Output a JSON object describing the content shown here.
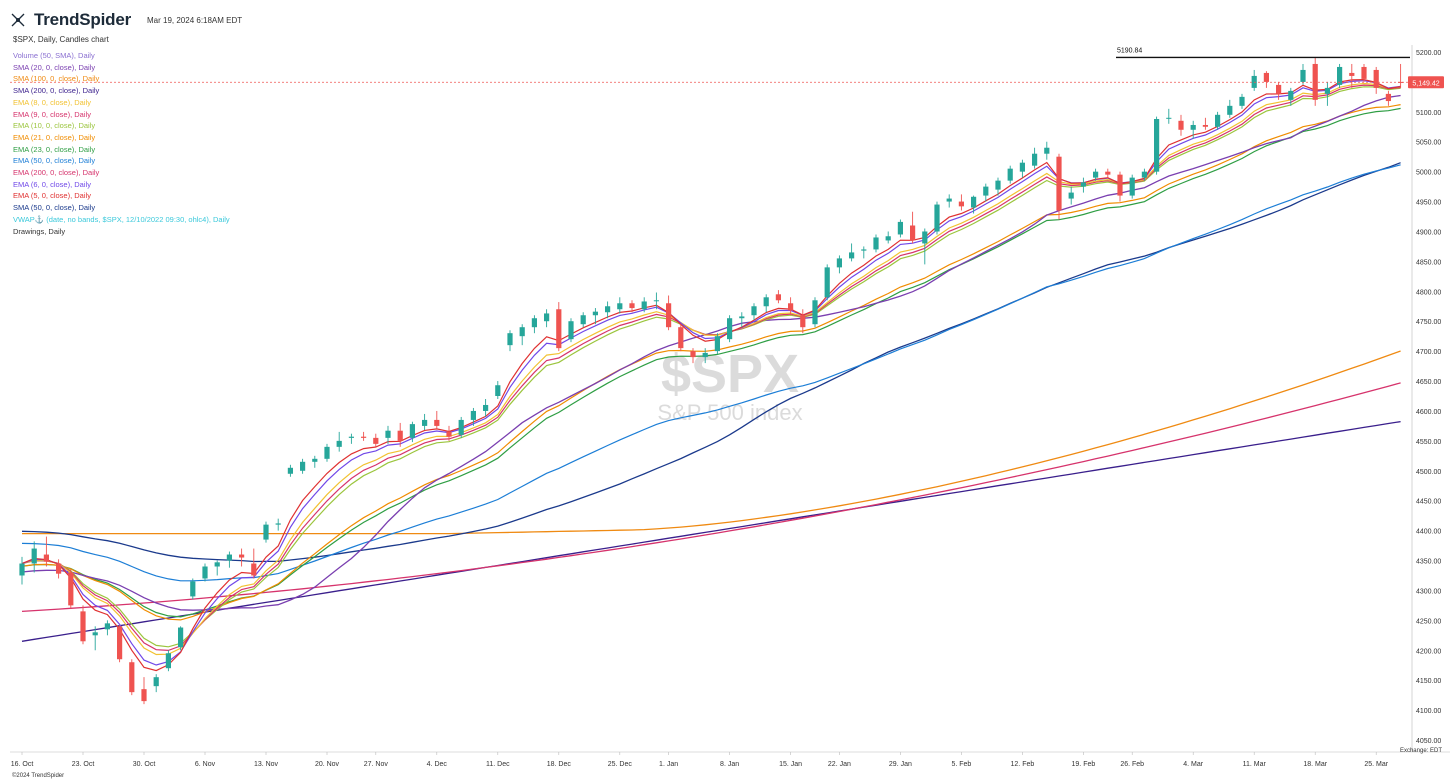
{
  "header": {
    "brand": "TrendSpider",
    "timestamp": "Mar 19, 2024 6:18AM EDT",
    "subtitle": "$SPX, Daily, Candles chart"
  },
  "legend": [
    {
      "label": "Volume (50, SMA), Daily",
      "color": "#8a6fd1"
    },
    {
      "label": "SMA (20, 0, close), Daily",
      "color": "#7a3fb0"
    },
    {
      "label": "SMA (100, 0, close), Daily",
      "color": "#ef8a12"
    },
    {
      "label": "SMA (200, 0, close), Daily",
      "color": "#3a1f8c"
    },
    {
      "label": "EMA (8, 0, close), Daily",
      "color": "#f2c232"
    },
    {
      "label": "EMA (9, 0, close), Daily",
      "color": "#d6336c"
    },
    {
      "label": "EMA (10, 0, close), Daily",
      "color": "#9bc53d"
    },
    {
      "label": "EMA (21, 0, close), Daily",
      "color": "#f08c00"
    },
    {
      "label": "EMA (23, 0, close), Daily",
      "color": "#2f9e44"
    },
    {
      "label": "EMA (50, 0, close), Daily",
      "color": "#1c7ed6"
    },
    {
      "label": "EMA (200, 0, close), Daily",
      "color": "#d6336c"
    },
    {
      "label": "EMA (6, 0, close), Daily",
      "color": "#7048e8"
    },
    {
      "label": "EMA (5, 0, close), Daily",
      "color": "#e03131"
    },
    {
      "label": "SMA (50, 0, close), Daily",
      "color": "#1b3a8c"
    },
    {
      "label": "VWAP⚓ (date, no bands, $SPX, 12/10/2022 09:30, ohlc4), Daily",
      "color": "#3bc9db"
    },
    {
      "label": "Drawings, Daily",
      "color": "#333333"
    }
  ],
  "footer": {
    "copyright": "©2024 TrendSpider",
    "exchange": "Exchange: EDT"
  },
  "watermark": {
    "symbol": "$SPX",
    "name": "S&P 500 index"
  },
  "colors": {
    "up": "#26a69a",
    "down": "#ef5350",
    "grid": "#ffffff"
  },
  "chart_data": {
    "type": "candlestick",
    "title": "$SPX",
    "ylim": [
      4050,
      5200
    ],
    "yticks": [
      4050,
      4100,
      4150,
      4200,
      4250,
      4300,
      4350,
      4400,
      4450,
      4500,
      4550,
      4600,
      4650,
      4700,
      4750,
      4800,
      4850,
      4900,
      4950,
      5000,
      5050,
      5100,
      5150,
      5200
    ],
    "xticks": [
      {
        "i": 0,
        "label": "16. Oct"
      },
      {
        "i": 5,
        "label": "23. Oct"
      },
      {
        "i": 10,
        "label": "30. Oct"
      },
      {
        "i": 15,
        "label": "6. Nov"
      },
      {
        "i": 20,
        "label": "13. Nov"
      },
      {
        "i": 25,
        "label": "20. Nov"
      },
      {
        "i": 29,
        "label": "27. Nov"
      },
      {
        "i": 34,
        "label": "4. Dec"
      },
      {
        "i": 39,
        "label": "11. Dec"
      },
      {
        "i": 44,
        "label": "18. Dec"
      },
      {
        "i": 49,
        "label": "25. Dec"
      },
      {
        "i": 53,
        "label": "1. Jan"
      },
      {
        "i": 58,
        "label": "8. Jan"
      },
      {
        "i": 63,
        "label": "15. Jan"
      },
      {
        "i": 67,
        "label": "22. Jan"
      },
      {
        "i": 72,
        "label": "29. Jan"
      },
      {
        "i": 77,
        "label": "5. Feb"
      },
      {
        "i": 82,
        "label": "12. Feb"
      },
      {
        "i": 87,
        "label": "19. Feb"
      },
      {
        "i": 91,
        "label": "26. Feb"
      },
      {
        "i": 96,
        "label": "4. Mar"
      },
      {
        "i": 101,
        "label": "11. Mar"
      },
      {
        "i": 106,
        "label": "18. Mar"
      },
      {
        "i": 111,
        "label": "25. Mar"
      }
    ],
    "candles": [
      [
        4325,
        4356,
        4310,
        4345
      ],
      [
        4345,
        4382,
        4330,
        4370
      ],
      [
        4360,
        4390,
        4340,
        4348
      ],
      [
        4345,
        4352,
        4320,
        4328
      ],
      [
        4330,
        4335,
        4270,
        4275
      ],
      [
        4265,
        4275,
        4210,
        4215
      ],
      [
        4225,
        4240,
        4200,
        4230
      ],
      [
        4235,
        4250,
        4225,
        4245
      ],
      [
        4240,
        4242,
        4180,
        4185
      ],
      [
        4180,
        4185,
        4125,
        4130
      ],
      [
        4135,
        4155,
        4110,
        4115
      ],
      [
        4140,
        4160,
        4130,
        4155
      ],
      [
        4170,
        4200,
        4165,
        4195
      ],
      [
        4205,
        4240,
        4200,
        4238
      ],
      [
        4290,
        4320,
        4285,
        4315
      ],
      [
        4320,
        4345,
        4315,
        4340
      ],
      [
        4340,
        4350,
        4325,
        4347
      ],
      [
        4350,
        4365,
        4338,
        4360
      ],
      [
        4360,
        4370,
        4340,
        4355
      ],
      [
        4345,
        4370,
        4320,
        4325
      ],
      [
        4385,
        4415,
        4380,
        4410
      ],
      [
        4410,
        4420,
        4400,
        4412
      ],
      [
        4495,
        4510,
        4490,
        4505
      ],
      [
        4500,
        4520,
        4495,
        4515
      ],
      [
        4515,
        4525,
        4505,
        4520
      ],
      [
        4520,
        4545,
        4515,
        4540
      ],
      [
        4540,
        4565,
        4532,
        4550
      ],
      [
        4555,
        4562,
        4545,
        4557
      ],
      [
        4557,
        4565,
        4550,
        4555
      ],
      [
        4555,
        4562,
        4540,
        4545
      ],
      [
        4555,
        4575,
        4545,
        4567
      ],
      [
        4567,
        4580,
        4540,
        4550
      ],
      [
        4555,
        4582,
        4548,
        4578
      ],
      [
        4575,
        4595,
        4568,
        4585
      ],
      [
        4585,
        4600,
        4570,
        4575
      ],
      [
        4565,
        4575,
        4550,
        4557
      ],
      [
        4560,
        4590,
        4555,
        4585
      ],
      [
        4585,
        4605,
        4575,
        4600
      ],
      [
        4600,
        4620,
        4590,
        4610
      ],
      [
        4625,
        4650,
        4620,
        4643
      ],
      [
        4710,
        4735,
        4700,
        4730
      ],
      [
        4725,
        4745,
        4710,
        4740
      ],
      [
        4740,
        4760,
        4730,
        4755
      ],
      [
        4750,
        4770,
        4740,
        4763
      ],
      [
        4770,
        4782,
        4700,
        4705
      ],
      [
        4720,
        4755,
        4715,
        4750
      ],
      [
        4745,
        4765,
        4740,
        4760
      ],
      [
        4760,
        4772,
        4745,
        4766
      ],
      [
        4765,
        4783,
        4755,
        4775
      ],
      [
        4770,
        4790,
        4763,
        4780
      ],
      [
        4780,
        4785,
        4765,
        4772
      ],
      [
        4770,
        4790,
        4765,
        4783
      ],
      [
        4785,
        4798,
        4770,
        4785
      ],
      [
        4780,
        4793,
        4735,
        4740
      ],
      [
        4740,
        4745,
        4700,
        4705
      ],
      [
        4700,
        4705,
        4680,
        4690
      ],
      [
        4690,
        4705,
        4680,
        4697
      ],
      [
        4700,
        4730,
        4695,
        4725
      ],
      [
        4720,
        4760,
        4715,
        4755
      ],
      [
        4755,
        4765,
        4740,
        4758
      ],
      [
        4760,
        4780,
        4752,
        4775
      ],
      [
        4775,
        4795,
        4765,
        4790
      ],
      [
        4795,
        4802,
        4780,
        4785
      ],
      [
        4780,
        4790,
        4760,
        4768
      ],
      [
        4760,
        4770,
        4730,
        4740
      ],
      [
        4745,
        4790,
        4740,
        4785
      ],
      [
        4790,
        4845,
        4785,
        4840
      ],
      [
        4840,
        4860,
        4830,
        4855
      ],
      [
        4855,
        4880,
        4850,
        4865
      ],
      [
        4868,
        4875,
        4855,
        4870
      ],
      [
        4870,
        4895,
        4865,
        4890
      ],
      [
        4885,
        4900,
        4880,
        4892
      ],
      [
        4895,
        4920,
        4890,
        4916
      ],
      [
        4910,
        4933,
        4880,
        4885
      ],
      [
        4880,
        4905,
        4845,
        4900
      ],
      [
        4900,
        4950,
        4895,
        4945
      ],
      [
        4950,
        4962,
        4940,
        4955
      ],
      [
        4950,
        4962,
        4935,
        4942
      ],
      [
        4940,
        4960,
        4930,
        4958
      ],
      [
        4960,
        4980,
        4950,
        4975
      ],
      [
        4970,
        4990,
        4960,
        4985
      ],
      [
        4985,
        5010,
        4980,
        5005
      ],
      [
        5000,
        5020,
        4990,
        5015
      ],
      [
        5010,
        5040,
        5005,
        5030
      ],
      [
        5030,
        5050,
        5020,
        5040
      ],
      [
        5025,
        5030,
        4920,
        4935
      ],
      [
        4955,
        4975,
        4945,
        4965
      ],
      [
        4975,
        4990,
        4965,
        4982
      ],
      [
        4990,
        5005,
        4985,
        5000
      ],
      [
        5000,
        5005,
        4990,
        4995
      ],
      [
        4995,
        5000,
        4950,
        4960
      ],
      [
        4960,
        4995,
        4955,
        4990
      ],
      [
        4990,
        5005,
        4985,
        5000
      ],
      [
        5000,
        5092,
        4995,
        5088
      ],
      [
        5090,
        5105,
        5080,
        5090
      ],
      [
        5085,
        5095,
        5060,
        5070
      ],
      [
        5070,
        5085,
        5055,
        5078
      ],
      [
        5078,
        5090,
        5070,
        5075
      ],
      [
        5075,
        5100,
        5070,
        5095
      ],
      [
        5095,
        5120,
        5090,
        5110
      ],
      [
        5110,
        5130,
        5105,
        5125
      ],
      [
        5140,
        5170,
        5135,
        5160
      ],
      [
        5165,
        5168,
        5140,
        5150
      ],
      [
        5145,
        5150,
        5120,
        5130
      ],
      [
        5120,
        5140,
        5110,
        5135
      ],
      [
        5150,
        5180,
        5145,
        5170
      ],
      [
        5180,
        5190,
        5110,
        5120
      ],
      [
        5130,
        5150,
        5110,
        5140
      ],
      [
        5145,
        5180,
        5140,
        5175
      ],
      [
        5165,
        5180,
        5140,
        5160
      ],
      [
        5175,
        5180,
        5150,
        5155
      ],
      [
        5170,
        5175,
        5130,
        5140
      ],
      [
        5130,
        5135,
        5110,
        5118
      ],
      [
        5150,
        5180,
        5140,
        5149
      ]
    ],
    "current_price": {
      "label": "5,149.42",
      "value": 5149.42,
      "color": "#ef5350"
    },
    "resistance": {
      "label": "5190.84",
      "value": 5190.84
    }
  }
}
